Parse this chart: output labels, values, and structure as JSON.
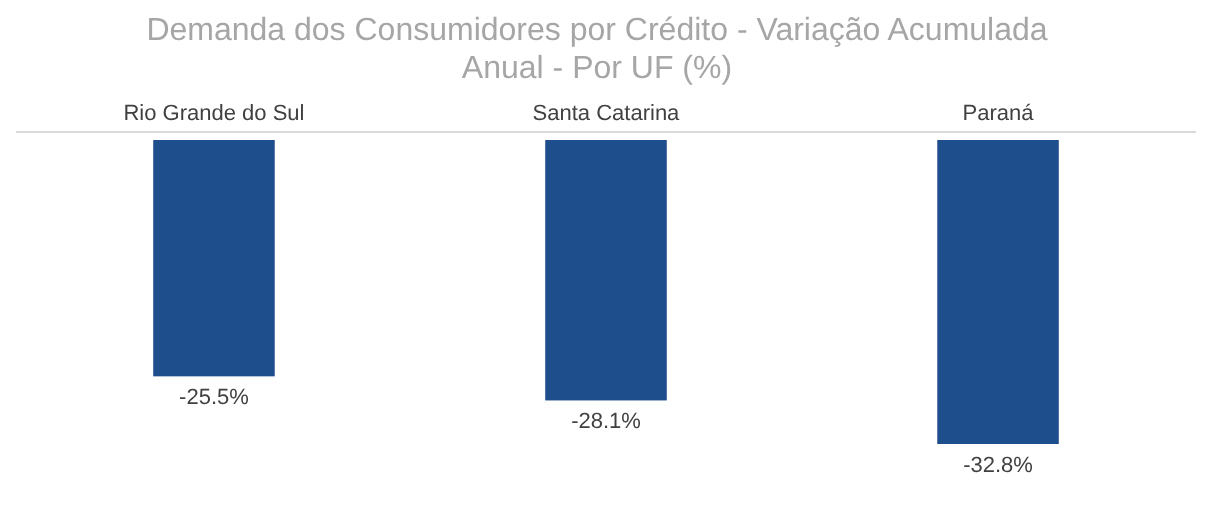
{
  "chart_data": {
    "type": "bar",
    "title": "Demanda dos Consumidores por Crédito - Variação Acumulada Anual - Por UF (%)",
    "categories": [
      "Rio Grande do Sul",
      "Santa Catarina",
      "Paraná"
    ],
    "values": [
      -25.5,
      -28.1,
      -32.8
    ],
    "value_labels": [
      "-25.5%",
      "-28.1%",
      "-32.8%"
    ],
    "color": "#1f4e8c"
  }
}
